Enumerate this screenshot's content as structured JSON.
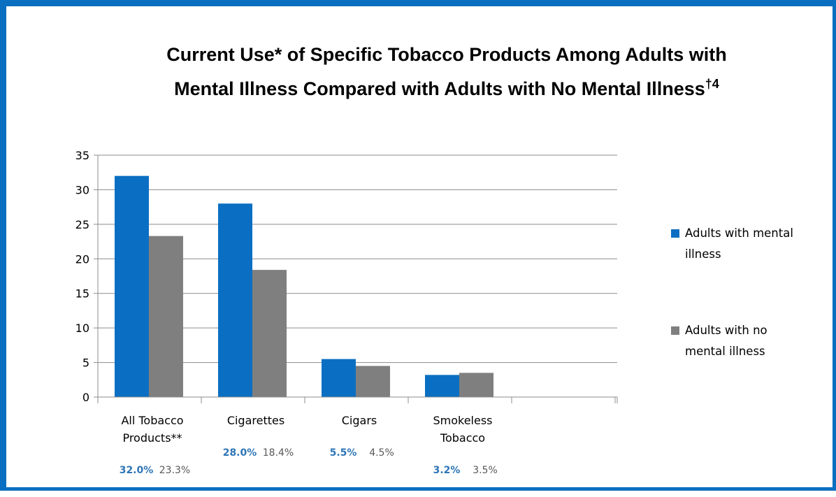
{
  "colors": {
    "frame": "#0b6fc1",
    "series1": "#0a6fc2",
    "series2": "#7f7f7f",
    "grid": "#8c8c8c",
    "label1": "#2e75b6",
    "label2": "#595959"
  },
  "chart_data": {
    "type": "bar",
    "title_line1": "Current Use* of Specific Tobacco Products Among Adults with",
    "title_line2": "Mental Illness Compared with Adults with No Mental Illness",
    "title_superscript": "†4",
    "categories": [
      [
        "All Tobacco",
        "Products**"
      ],
      [
        "Cigarettes"
      ],
      [
        "Cigars"
      ],
      [
        "Smokeless",
        "Tobacco"
      ]
    ],
    "series": [
      {
        "name": "Adults with mental illness",
        "legend_lines": [
          "Adults with mental",
          "illness"
        ],
        "values": [
          32.0,
          28.0,
          5.5,
          3.2
        ]
      },
      {
        "name": "Adults with no mental illness",
        "legend_lines": [
          "Adults with no",
          "mental illness"
        ],
        "values": [
          23.3,
          18.4,
          4.5,
          3.5
        ]
      }
    ],
    "data_labels": [
      [
        "32.0%",
        "23.3%"
      ],
      [
        "28.0%",
        "18.4%"
      ],
      [
        "5.5%",
        "4.5%"
      ],
      [
        "3.2%",
        "3.5%"
      ]
    ],
    "yticks": [
      0,
      5,
      10,
      15,
      20,
      25,
      30,
      35
    ],
    "ylim": [
      0,
      35
    ],
    "xlabel": "",
    "ylabel": "",
    "grid": true,
    "legend_position": "right"
  }
}
